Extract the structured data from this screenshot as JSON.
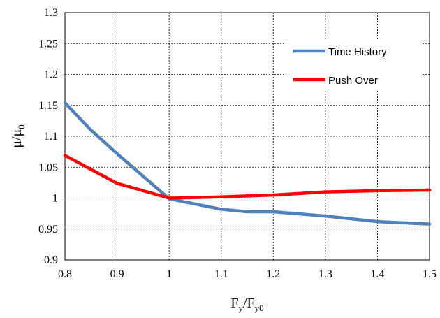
{
  "chart_data": {
    "type": "line",
    "xlabel": {
      "main": "F",
      "sub1": "y",
      "slash": "/F",
      "sub2": "y0"
    },
    "ylabel": {
      "main": "μ/μ",
      "sub": "0"
    },
    "xlim": [
      0.8,
      1.5
    ],
    "ylim": [
      0.9,
      1.3
    ],
    "x_ticks": [
      0.8,
      0.9,
      1.0,
      1.1,
      1.2,
      1.3,
      1.4,
      1.5
    ],
    "x_tick_labels": [
      "0.8",
      "0.9",
      "1",
      "1.1",
      "1.2",
      "1.3",
      "1.4",
      "1.5"
    ],
    "y_ticks": [
      0.9,
      0.95,
      1.0,
      1.05,
      1.1,
      1.15,
      1.2,
      1.25,
      1.3
    ],
    "y_tick_labels": [
      "0.9",
      "0.95",
      "1",
      "1.05",
      "1.1",
      "1.15",
      "1.2",
      "1.25",
      "1.3"
    ],
    "grid": true,
    "legend_position": "top-right",
    "series": [
      {
        "name": "Time History",
        "color": "#4f81bd",
        "x": [
          0.8,
          0.85,
          0.9,
          1.0,
          1.1,
          1.15,
          1.2,
          1.3,
          1.4,
          1.5
        ],
        "y": [
          1.154,
          1.11,
          1.072,
          0.999,
          0.982,
          0.978,
          0.978,
          0.971,
          0.962,
          0.958
        ]
      },
      {
        "name": "Push Over",
        "color": "#ff0000",
        "x": [
          0.8,
          0.9,
          1.0,
          1.1,
          1.2,
          1.3,
          1.4,
          1.5
        ],
        "y": [
          1.069,
          1.024,
          1.0,
          1.002,
          1.005,
          1.01,
          1.012,
          1.013
        ]
      }
    ]
  }
}
